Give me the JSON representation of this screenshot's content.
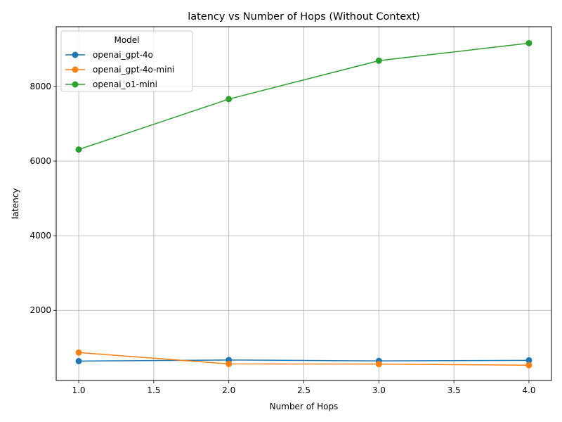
{
  "chart_data": {
    "type": "line",
    "title": "latency vs Number of Hops (Without Context)",
    "xlabel": "Number of Hops",
    "ylabel": "latency",
    "x": [
      1.0,
      2.0,
      3.0,
      4.0
    ],
    "xlim": [
      0.85,
      4.15
    ],
    "ylim": [
      120,
      9600
    ],
    "xticks": [
      1.0,
      1.5,
      2.0,
      2.5,
      3.0,
      3.5,
      4.0
    ],
    "xtick_labels": [
      "1.0",
      "1.5",
      "2.0",
      "2.5",
      "3.0",
      "3.5",
      "4.0"
    ],
    "yticks": [
      2000,
      4000,
      6000,
      8000
    ],
    "ytick_labels": [
      "2000",
      "4000",
      "6000",
      "8000"
    ],
    "grid": true,
    "legend": {
      "title": "Model",
      "placement": "top-left"
    },
    "series": [
      {
        "name": "openai_gpt-4o",
        "color": "#1f77b4",
        "values": [
          640,
          670,
          645,
          660
        ]
      },
      {
        "name": "openai_gpt-4o-mini",
        "color": "#ff7f0e",
        "values": [
          870,
          565,
          560,
          530
        ]
      },
      {
        "name": "openai_o1-mini",
        "color": "#2ca02c",
        "values": [
          6310,
          7660,
          8690,
          9160
        ]
      }
    ]
  }
}
